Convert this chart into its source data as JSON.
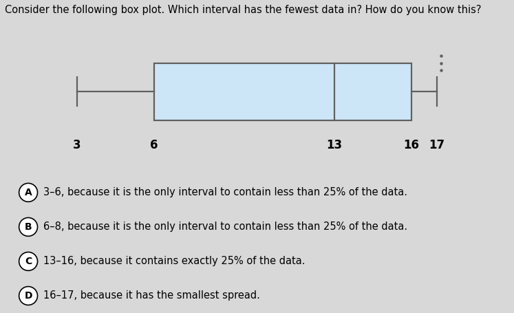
{
  "title": "Consider the following box plot. Which interval has the fewest data in? How do you know this?",
  "title_fontsize": 10.5,
  "whisker_min": 3,
  "q1": 6,
  "median": 13,
  "q3": 16,
  "whisker_max": 17,
  "box_color": "#cce6f7",
  "box_edge_color": "#606060",
  "answers": [
    {
      "label": "A",
      "text": "3–6, because it is the only interval to contain less than 25% of the data."
    },
    {
      "label": "B",
      "text": "6–8, because it is the only interval to contain less than 25% of the data."
    },
    {
      "label": "C",
      "text": "13–16, because it contains exactly 25% of the data."
    },
    {
      "label": "D",
      "text": "16–17, because it has the smallest spread."
    }
  ],
  "answer_fontsize": 10.5,
  "bg_color": "#d8d8d8",
  "answer_bg_even": "#d0d0d0",
  "answer_bg_odd": "#c4c4c4",
  "fig_width": 7.47,
  "fig_height": 4.55,
  "dpi": 100
}
